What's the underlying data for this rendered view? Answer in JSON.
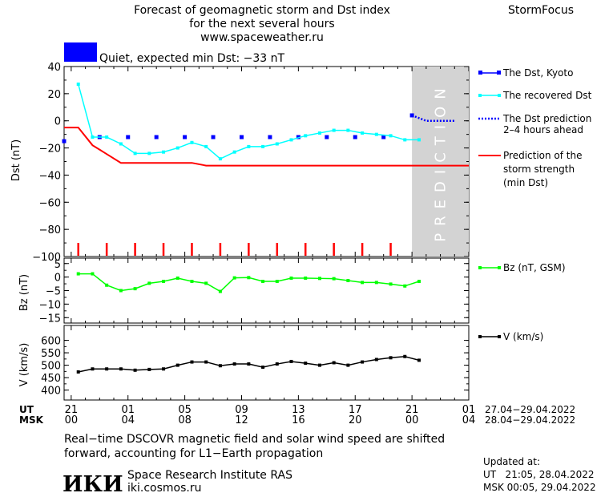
{
  "header": {
    "title_line1": "Forecast of geomagnetic storm and Dst index",
    "title_line2": "for the next several hours",
    "title_line3": "www.spaceweather.ru",
    "brand": "StormFocus",
    "status_text": "Quiet, expected min Dst: −33 nT"
  },
  "colors": {
    "quiet_box": "#0000ff",
    "dst_kyoto": "#0000ff",
    "recovered": "#00ffff",
    "prediction": "#0000ff",
    "storm_strength": "#ff0000",
    "bz": "#00ff00",
    "speed": "#000000",
    "prediction_zone": "#d3d3d3"
  },
  "legend": {
    "dst_kyoto": "The Dst, Kyoto",
    "recovered": "The recovered Dst",
    "prediction_l1": "The Dst prediction",
    "prediction_l2": "2–4 hours ahead",
    "storm_l1": "Prediction of the",
    "storm_l2": "storm strength",
    "storm_l3": "(min Dst)",
    "bz": "Bz (nT, GSM)",
    "v": "V (km/s)"
  },
  "prediction_label": "PREDICTION",
  "time_axis": {
    "ut_label": "UT",
    "msk_label": "MSK",
    "ut_ticks": [
      "21",
      "01",
      "05",
      "09",
      "13",
      "17",
      "21",
      "01"
    ],
    "msk_ticks": [
      "00",
      "04",
      "08",
      "12",
      "16",
      "20",
      "00",
      "04"
    ],
    "ut_range": "27.04−29.04.2022",
    "msk_range": "28.04−29.04.2022"
  },
  "footer": {
    "note_line1": "Real−time DSCOVR magnetic field and solar wind speed are shifted",
    "note_line2": "forward, accounting for L1−Earth propagation",
    "logo_text": "ИКИ",
    "institute": "Space Research Institute RAS",
    "site": "iki.cosmos.ru",
    "updated_label": "Updated at:",
    "updated_ut": "UT   21:05, 28.04.2022",
    "updated_msk": "MSK 00:05, 29.04.2022"
  },
  "chart_data": [
    {
      "type": "line",
      "name": "dst_panel",
      "ylabel": "Dst (nT)",
      "ylim": [
        -100,
        40
      ],
      "yticks": [
        40,
        20,
        0,
        -20,
        -40,
        -60,
        -80,
        -100
      ],
      "xlim": [
        -0.5,
        28
      ],
      "prediction_start": 24.0,
      "series": [
        {
          "key": "dst_kyoto",
          "style": "squares",
          "x": [
            -0.5,
            2,
            4,
            6,
            8,
            10,
            12,
            14,
            16,
            18,
            20,
            22,
            24
          ],
          "y": [
            -15,
            -12,
            -12,
            -12,
            -12,
            -12,
            -12,
            -12,
            -12,
            -12,
            -12,
            -12,
            4
          ]
        },
        {
          "key": "recovered",
          "style": "line-squares",
          "x": [
            0.5,
            1.5,
            2.5,
            3.5,
            4.5,
            5.5,
            6.5,
            7.5,
            8.5,
            9.5,
            10.5,
            11.5,
            12.5,
            13.5,
            14.5,
            15.5,
            16.5,
            17.5,
            18.5,
            19.5,
            20.5,
            21.5,
            22.5,
            23.5,
            24.5
          ],
          "y": [
            27,
            -12,
            -12,
            -17,
            -24,
            -24,
            -23,
            -20,
            -16,
            -19,
            -28,
            -23,
            -19,
            -19,
            -17,
            -14,
            -11,
            -9,
            -7,
            -7,
            -9,
            -10,
            -11,
            -14,
            -14
          ]
        },
        {
          "key": "prediction",
          "style": "dotted",
          "x": [
            24,
            25,
            26,
            27
          ],
          "y": [
            4,
            0,
            0,
            0
          ]
        },
        {
          "key": "storm_strength",
          "style": "line",
          "x": [
            -0.5,
            0.5,
            1.5,
            3.5,
            8.5,
            9.5,
            28
          ],
          "y": [
            -5,
            -5,
            -18,
            -31,
            -31,
            -33,
            -33
          ]
        }
      ],
      "event_markers_x": [
        0.5,
        2.5,
        4.5,
        6.5,
        8.5,
        10.5,
        12.5,
        14.5,
        16.5,
        18.5,
        20.5,
        22.5
      ]
    },
    {
      "type": "line",
      "name": "bz_panel",
      "ylabel": "Bz (nT)",
      "ylim": [
        -17,
        7
      ],
      "yticks": [
        5,
        0,
        -5,
        -10,
        -15
      ],
      "xlim": [
        -0.5,
        28
      ],
      "series": [
        {
          "key": "bz",
          "style": "line-squares",
          "x": [
            0.5,
            1.5,
            2.5,
            3.5,
            4.5,
            5.5,
            6.5,
            7.5,
            8.5,
            9.5,
            10.5,
            11.5,
            12.5,
            13.5,
            14.5,
            15.5,
            16.5,
            17.5,
            18.5,
            19.5,
            20.5,
            21.5,
            22.5,
            23.5,
            24.5
          ],
          "y": [
            1.2,
            1.2,
            -3,
            -5,
            -4.3,
            -2.3,
            -1.6,
            -0.4,
            -1.6,
            -2.3,
            -5.3,
            -0.3,
            -0.2,
            -1.6,
            -1.6,
            -0.4,
            -0.4,
            -0.5,
            -0.6,
            -1.3,
            -2,
            -2,
            -2.6,
            -3.3,
            -1.6
          ]
        }
      ]
    },
    {
      "type": "line",
      "name": "v_panel",
      "ylabel": "V (km/s)",
      "ylim": [
        360,
        660
      ],
      "yticks": [
        600,
        550,
        500,
        450,
        400
      ],
      "xlim": [
        -0.5,
        28
      ],
      "series": [
        {
          "key": "v",
          "style": "line-squares",
          "x": [
            0.5,
            1.5,
            2.5,
            3.5,
            4.5,
            5.5,
            6.5,
            7.5,
            8.5,
            9.5,
            10.5,
            11.5,
            12.5,
            13.5,
            14.5,
            15.5,
            16.5,
            17.5,
            18.5,
            19.5,
            20.5,
            21.5,
            22.5,
            23.5,
            24.5
          ],
          "y": [
            473,
            485,
            485,
            485,
            480,
            483,
            485,
            500,
            513,
            513,
            498,
            505,
            505,
            492,
            505,
            515,
            508,
            500,
            510,
            500,
            513,
            523,
            530,
            535,
            520
          ]
        }
      ]
    }
  ]
}
